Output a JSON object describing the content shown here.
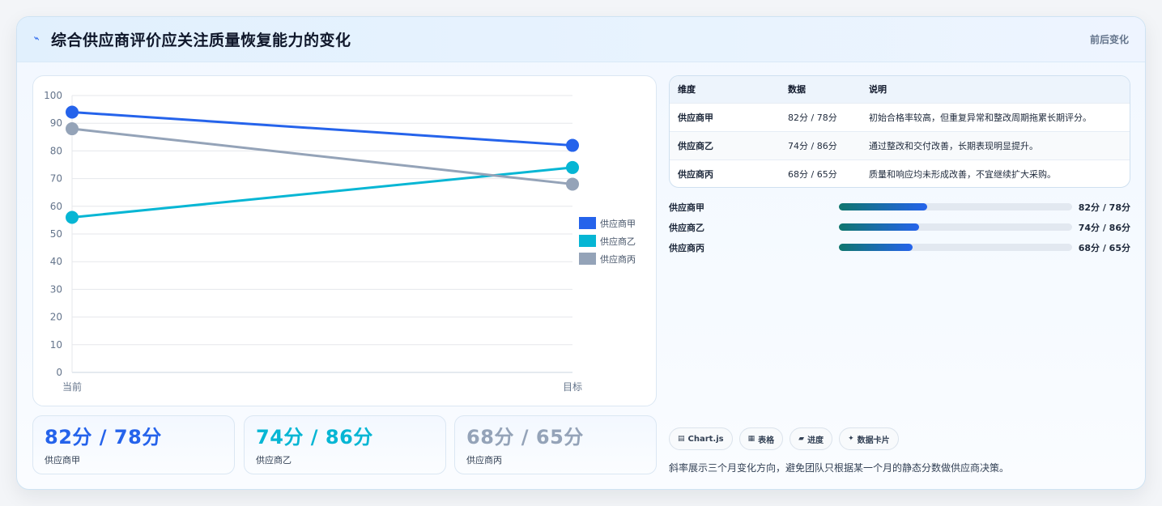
{
  "header": {
    "title": "综合供应商评价应关注质量恢复能力的变化",
    "aside": "前后变化",
    "icon": "bolt-icon"
  },
  "chart_data": {
    "type": "line",
    "categories": [
      "当前",
      "目标"
    ],
    "ylim": [
      0,
      100
    ],
    "yticks": [
      0,
      10,
      20,
      30,
      40,
      50,
      60,
      70,
      80,
      90,
      100
    ],
    "grid": true,
    "legend_position": "right",
    "series": [
      {
        "name": "供应商甲",
        "values": [
          94,
          82
        ],
        "color": "#2563eb"
      },
      {
        "name": "供应商乙",
        "values": [
          56,
          74
        ],
        "color": "#06b6d4"
      },
      {
        "name": "供应商丙",
        "values": [
          88,
          68
        ],
        "color": "#94a3b8"
      }
    ]
  },
  "stats": [
    {
      "value": "82分 / 78分",
      "label": "供应商甲",
      "color": "#2563eb"
    },
    {
      "value": "74分 / 86分",
      "label": "供应商乙",
      "color": "#06b6d4"
    },
    {
      "value": "68分 / 65分",
      "label": "供应商丙",
      "color": "#94a3b8"
    }
  ],
  "table": {
    "headers": [
      "维度",
      "数据",
      "说明"
    ],
    "rows": [
      {
        "name": "供应商甲",
        "data": "82分 / 78分",
        "desc": "初始合格率较高，但重复异常和整改周期拖累长期评分。"
      },
      {
        "name": "供应商乙",
        "data": "74分 / 86分",
        "desc": "通过整改和交付改善，长期表现明显提升。"
      },
      {
        "name": "供应商丙",
        "data": "68分 / 65分",
        "desc": "质量和响应均未形成改善，不宜继续扩大采购。"
      }
    ]
  },
  "progress": [
    {
      "name": "供应商甲",
      "value": "82分 / 78分",
      "fraction": 0.38
    },
    {
      "name": "供应商乙",
      "value": "74分 / 86分",
      "fraction": 0.345
    },
    {
      "name": "供应商丙",
      "value": "68分 / 65分",
      "fraction": 0.315
    }
  ],
  "chips": [
    {
      "label": "Chart.js",
      "icon": "chart-icon",
      "glyph": "▤"
    },
    {
      "label": "表格",
      "icon": "table-icon",
      "glyph": "▦"
    },
    {
      "label": "进度",
      "icon": "progress-icon",
      "glyph": "▰"
    },
    {
      "label": "数据卡片",
      "icon": "sparkle-icon",
      "glyph": "✦"
    }
  ],
  "note": "斜率展示三个月变化方向，避免团队只根据某一个月的静态分数做供应商决策。"
}
